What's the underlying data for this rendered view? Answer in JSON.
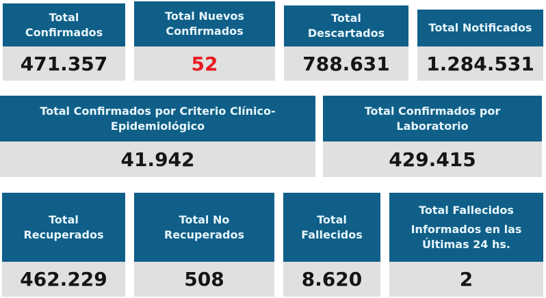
{
  "colors": {
    "page_bg": "#ffffff",
    "header_bg": "#0f5f88",
    "header_text": "#e8f6fc",
    "body_bg": "#e0e0e0",
    "value_text": "#151515",
    "alert_value_text": "#e91a20"
  },
  "rows": [
    {
      "cards": [
        {
          "title": "Total Confirmados",
          "value": "471.357"
        },
        {
          "title": "Total Nuevos Confirmados",
          "value": "52"
        },
        {
          "title": "Total Descartados",
          "value": "788.631"
        },
        {
          "title": "Total Notificados",
          "value": "1.284.531"
        }
      ]
    },
    {
      "cards": [
        {
          "title": "Total Confirmados por Criterio Clínico-Epidemiológico",
          "value": "41.942"
        },
        {
          "title": "Total Confirmados por Laboratorio",
          "value": "429.415"
        }
      ]
    },
    {
      "cards": [
        {
          "title": "Total Recuperados",
          "value": "462.229"
        },
        {
          "title": "Total No Recuperados",
          "value": "508"
        },
        {
          "title": "Total Fallecidos",
          "value": "8.620"
        },
        {
          "title": "Total Fallecidos",
          "subtitle": "Informados en las Últimas 24 hs.",
          "value": "2"
        }
      ]
    }
  ]
}
